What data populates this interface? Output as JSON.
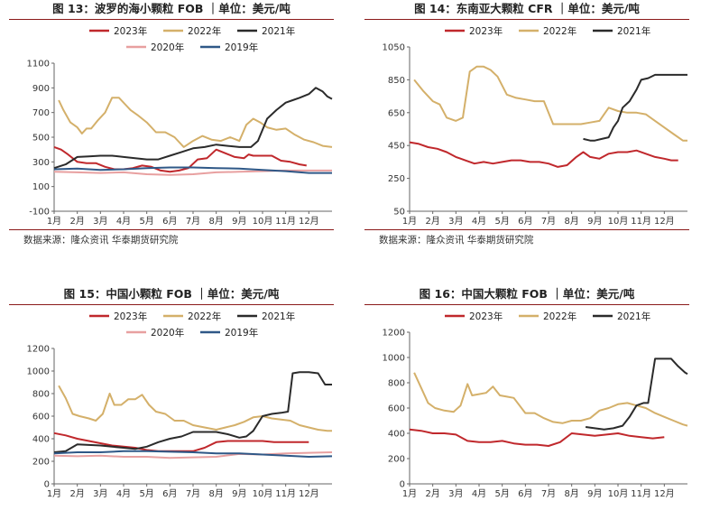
{
  "colors": {
    "2023年": "#c0282c",
    "2022年": "#d4b06a",
    "2021年": "#2b2b2b",
    "2020年": "#e8a0a0",
    "2019年": "#2f5887",
    "rule": "#8b1a1a"
  },
  "source_text": "数据来源：隆众资讯  华泰期货研究院",
  "chart_data": [
    {
      "type": "line",
      "title": "图 13：波罗的海小颗粒 FOB ｜单位：美元/吨",
      "ylim": [
        -100,
        1100
      ],
      "yticks": [
        -100,
        100,
        300,
        500,
        700,
        900,
        1100
      ],
      "xtick_labels": [
        "1月",
        "2月",
        "3月",
        "4月",
        "5月",
        "6月",
        "7月",
        "8月",
        "9月",
        "10月",
        "11月",
        "12月"
      ],
      "legend_rows": [
        [
          "2023年",
          "2022年",
          "2021年"
        ],
        [
          "2020年",
          "2019年"
        ]
      ],
      "series": [
        {
          "name": "2023年",
          "x": [
            1,
            1.3,
            1.6,
            2,
            2.4,
            2.8,
            3.2,
            3.6,
            4,
            4.4,
            4.8,
            5.2,
            5.6,
            6,
            6.4,
            6.8,
            7.2,
            7.6,
            8,
            8.4,
            8.8,
            9.2,
            9.4,
            9.6,
            10,
            10.4,
            10.8,
            11.2,
            11.6,
            11.9
          ],
          "values": [
            420,
            400,
            360,
            300,
            290,
            290,
            260,
            240,
            240,
            250,
            270,
            260,
            230,
            220,
            230,
            250,
            320,
            330,
            400,
            370,
            340,
            330,
            360,
            350,
            350,
            350,
            310,
            300,
            280,
            270
          ]
        },
        {
          "name": "2022年",
          "x": [
            1.2,
            1.4,
            1.7,
            2,
            2.2,
            2.4,
            2.6,
            2.9,
            3.2,
            3.5,
            3.8,
            4.1,
            4.3,
            4.6,
            5,
            5.4,
            5.8,
            6.2,
            6.6,
            7,
            7.4,
            7.8,
            8.2,
            8.6,
            9,
            9.3,
            9.6,
            9.9,
            10.2,
            10.6,
            11,
            11.4,
            11.8,
            12.2,
            12.6,
            13
          ],
          "values": [
            800,
            720,
            620,
            580,
            530,
            570,
            570,
            640,
            700,
            820,
            820,
            760,
            720,
            680,
            620,
            540,
            540,
            500,
            420,
            470,
            510,
            480,
            470,
            500,
            470,
            600,
            650,
            620,
            580,
            560,
            570,
            520,
            480,
            460,
            430,
            420
          ]
        },
        {
          "name": "2021年",
          "x": [
            1,
            1.5,
            2,
            2.5,
            3,
            3.5,
            4,
            4.5,
            5,
            5.5,
            6,
            6.5,
            7,
            7.5,
            8,
            8.5,
            9,
            9.5,
            9.8,
            10.2,
            10.6,
            11,
            11.3,
            11.6,
            12,
            12.3,
            12.6,
            12.8,
            13
          ],
          "values": [
            250,
            280,
            340,
            345,
            350,
            350,
            340,
            330,
            320,
            320,
            350,
            380,
            410,
            420,
            440,
            430,
            420,
            420,
            470,
            650,
            720,
            780,
            800,
            820,
            850,
            900,
            870,
            830,
            810
          ]
        },
        {
          "name": "2020年",
          "x": [
            1,
            2,
            3,
            4,
            5,
            6,
            7,
            8,
            9,
            10,
            11,
            12,
            13
          ],
          "values": [
            220,
            215,
            210,
            215,
            200,
            195,
            200,
            215,
            220,
            225,
            230,
            230,
            230
          ]
        },
        {
          "name": "2019年",
          "x": [
            1,
            2,
            3,
            4,
            5,
            6,
            7,
            8,
            9,
            10,
            11,
            12,
            13
          ],
          "values": [
            240,
            245,
            235,
            240,
            250,
            255,
            255,
            250,
            245,
            235,
            225,
            210,
            210
          ]
        }
      ]
    },
    {
      "type": "line",
      "title": "图 14：东南亚大颗粒 CFR ｜单位：美元/吨",
      "ylim": [
        50,
        1050
      ],
      "yticks": [
        50,
        250,
        450,
        650,
        850,
        1050
      ],
      "xtick_labels": [
        "1月",
        "2月",
        "3月",
        "4月",
        "5月",
        "6月",
        "7月",
        "8月",
        "9月",
        "10月",
        "11月",
        "12月"
      ],
      "legend_rows": [
        [
          "2023年",
          "2022年",
          "2021年"
        ]
      ],
      "series": [
        {
          "name": "2023年",
          "x": [
            1,
            1.4,
            1.8,
            2.2,
            2.6,
            3,
            3.4,
            3.8,
            4.2,
            4.6,
            5,
            5.4,
            5.8,
            6.2,
            6.6,
            7,
            7.4,
            7.8,
            8.2,
            8.5,
            8.8,
            9.2,
            9.6,
            10,
            10.4,
            10.8,
            11.2,
            11.6,
            12,
            12.3,
            12.6
          ],
          "values": [
            470,
            460,
            440,
            430,
            410,
            380,
            360,
            340,
            350,
            340,
            350,
            360,
            360,
            350,
            350,
            340,
            320,
            330,
            380,
            410,
            380,
            370,
            400,
            410,
            410,
            420,
            400,
            380,
            370,
            360,
            360
          ]
        },
        {
          "name": "2022年",
          "x": [
            1.2,
            1.6,
            2,
            2.3,
            2.6,
            3,
            3.3,
            3.6,
            3.9,
            4.2,
            4.5,
            4.8,
            5.2,
            5.6,
            6,
            6.4,
            6.8,
            7.2,
            7.6,
            8,
            8.4,
            8.8,
            9.2,
            9.6,
            10,
            10.4,
            10.8,
            11.2,
            11.6,
            12,
            12.4,
            12.8,
            13
          ],
          "values": [
            850,
            780,
            720,
            700,
            620,
            600,
            620,
            900,
            930,
            930,
            910,
            870,
            760,
            740,
            730,
            720,
            720,
            580,
            580,
            580,
            580,
            590,
            600,
            680,
            660,
            650,
            650,
            640,
            600,
            560,
            520,
            480,
            480
          ]
        },
        {
          "name": "2021年",
          "x": [
            8.5,
            8.8,
            9,
            9.3,
            9.6,
            9.8,
            10,
            10.2,
            10.5,
            10.8,
            11,
            11.3,
            11.6,
            12,
            12.4,
            12.8,
            13
          ],
          "values": [
            490,
            480,
            480,
            490,
            500,
            560,
            600,
            680,
            720,
            790,
            850,
            860,
            880,
            880,
            880,
            880,
            880
          ]
        }
      ]
    },
    {
      "type": "line",
      "title": "图 15：中国小颗粒 FOB ｜单位：美元/吨",
      "ylim": [
        0,
        1200
      ],
      "yticks": [
        0,
        200,
        400,
        600,
        800,
        1000,
        1200
      ],
      "xtick_labels": [
        "1月",
        "2月",
        "3月",
        "4月",
        "5月",
        "6月",
        "7月",
        "8月",
        "9月",
        "10月",
        "11月",
        "12月"
      ],
      "legend_rows": [
        [
          "2023年",
          "2022年",
          "2021年"
        ],
        [
          "2020年",
          "2019年"
        ]
      ],
      "series": [
        {
          "name": "2023年",
          "x": [
            1,
            1.5,
            2,
            2.5,
            3,
            3.5,
            4,
            4.5,
            5,
            5.5,
            6,
            6.5,
            7,
            7.5,
            8,
            8.5,
            9,
            9.5,
            10,
            10.5,
            11,
            11.5,
            12
          ],
          "values": [
            450,
            430,
            400,
            380,
            360,
            340,
            330,
            320,
            300,
            290,
            290,
            290,
            290,
            320,
            370,
            380,
            380,
            380,
            380,
            370,
            370,
            370,
            370
          ]
        },
        {
          "name": "2022年",
          "x": [
            1.2,
            1.5,
            1.8,
            2.1,
            2.5,
            2.8,
            3.1,
            3.4,
            3.6,
            3.9,
            4.2,
            4.5,
            4.8,
            5.1,
            5.4,
            5.8,
            6.2,
            6.6,
            7,
            7.5,
            8,
            8.4,
            8.8,
            9.2,
            9.6,
            10,
            10.4,
            10.8,
            11.2,
            11.6,
            12,
            12.4,
            12.8,
            13
          ],
          "values": [
            870,
            760,
            620,
            600,
            580,
            560,
            620,
            800,
            700,
            700,
            750,
            750,
            790,
            700,
            640,
            620,
            560,
            560,
            520,
            500,
            480,
            500,
            520,
            550,
            590,
            600,
            580,
            570,
            560,
            520,
            500,
            480,
            470,
            470
          ]
        },
        {
          "name": "2021年",
          "x": [
            1,
            1.5,
            2,
            2.5,
            3,
            3.5,
            4,
            4.5,
            5,
            5.5,
            6,
            6.5,
            7,
            7.5,
            8,
            8.5,
            9,
            9.3,
            9.6,
            10,
            10.4,
            10.8,
            11.1,
            11.3,
            11.6,
            12,
            12.4,
            12.7,
            13
          ],
          "values": [
            280,
            290,
            350,
            345,
            340,
            330,
            320,
            310,
            330,
            370,
            400,
            420,
            460,
            460,
            460,
            440,
            410,
            420,
            470,
            600,
            620,
            630,
            640,
            980,
            990,
            990,
            980,
            880,
            880
          ]
        },
        {
          "name": "2020年",
          "x": [
            1,
            2,
            3,
            4,
            5,
            6,
            7,
            8,
            9,
            10,
            11,
            12,
            13
          ],
          "values": [
            250,
            245,
            250,
            240,
            240,
            230,
            235,
            240,
            265,
            260,
            270,
            275,
            280
          ]
        },
        {
          "name": "2019年",
          "x": [
            1,
            2,
            3,
            4,
            5,
            6,
            7,
            8,
            9,
            10,
            11,
            12,
            13
          ],
          "values": [
            270,
            280,
            280,
            290,
            290,
            285,
            280,
            270,
            270,
            260,
            250,
            240,
            245
          ]
        }
      ]
    },
    {
      "type": "line",
      "title": "图 16：中国大颗粒 FOB ｜单位：美元/吨",
      "ylim": [
        0,
        1200
      ],
      "yticks": [
        0,
        200,
        400,
        600,
        800,
        1000,
        1200
      ],
      "xtick_labels": [
        "1月",
        "2月",
        "3月",
        "4月",
        "5月",
        "6月",
        "7月",
        "8月",
        "9月",
        "10月",
        "11月",
        "12月"
      ],
      "legend_rows": [
        [
          "2023年",
          "2022年",
          "2021年"
        ]
      ],
      "series": [
        {
          "name": "2023年",
          "x": [
            1,
            1.5,
            2,
            2.5,
            3,
            3.5,
            4,
            4.5,
            5,
            5.5,
            6,
            6.5,
            7,
            7.5,
            8,
            8.5,
            9,
            9.5,
            10,
            10.5,
            11,
            11.5,
            12
          ],
          "values": [
            430,
            420,
            400,
            400,
            390,
            340,
            330,
            330,
            340,
            320,
            310,
            310,
            300,
            330,
            400,
            390,
            380,
            390,
            400,
            380,
            370,
            360,
            370
          ]
        },
        {
          "name": "2022年",
          "x": [
            1.2,
            1.5,
            1.8,
            2.1,
            2.5,
            2.9,
            3.2,
            3.5,
            3.7,
            4,
            4.3,
            4.6,
            4.9,
            5.2,
            5.5,
            6,
            6.4,
            6.8,
            7.2,
            7.6,
            8,
            8.4,
            8.8,
            9.2,
            9.6,
            10,
            10.4,
            10.8,
            11.2,
            11.6,
            12,
            12.4,
            12.8,
            13
          ],
          "values": [
            880,
            760,
            640,
            600,
            580,
            570,
            620,
            790,
            700,
            710,
            720,
            770,
            700,
            690,
            680,
            560,
            560,
            520,
            490,
            480,
            500,
            500,
            520,
            580,
            600,
            630,
            640,
            620,
            600,
            560,
            530,
            500,
            470,
            460
          ]
        },
        {
          "name": "2021年",
          "x": [
            8.6,
            9,
            9.4,
            9.8,
            10.2,
            10.5,
            10.8,
            11.1,
            11.3,
            11.6,
            12,
            12.3,
            12.6,
            12.9,
            13
          ],
          "values": [
            450,
            440,
            430,
            440,
            460,
            530,
            620,
            640,
            640,
            990,
            990,
            990,
            930,
            880,
            870
          ]
        }
      ]
    }
  ]
}
